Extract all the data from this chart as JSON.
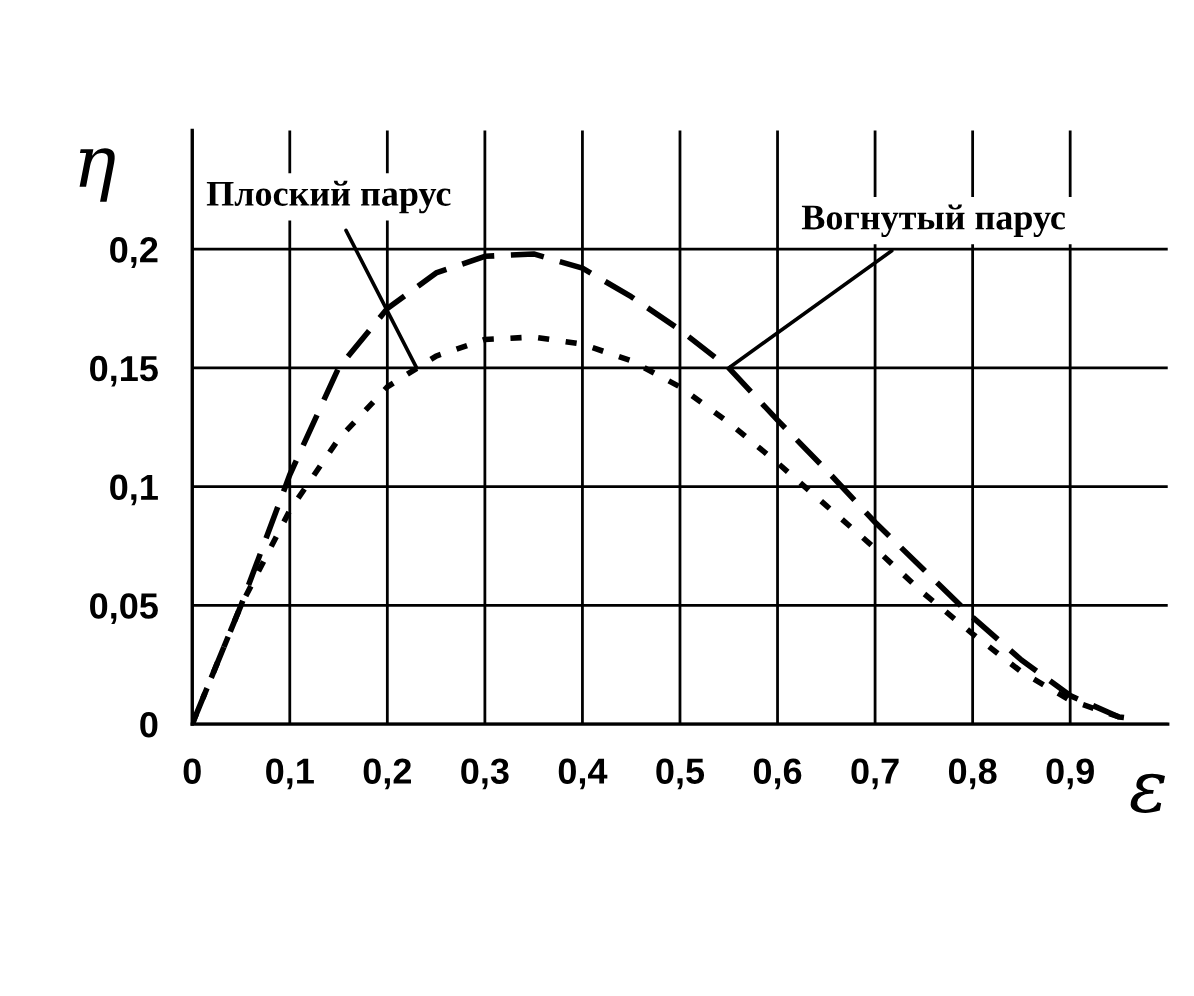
{
  "chart_data": {
    "type": "line",
    "xlabel": "ε",
    "ylabel": "η",
    "xlim": [
      0,
      1
    ],
    "ylim": [
      0,
      0.25
    ],
    "xticks": [
      0,
      {
        "value": 0.1,
        "label": "0,1"
      },
      {
        "value": 0.2,
        "label": "0,2"
      },
      {
        "value": 0.3,
        "label": "0,3"
      },
      {
        "value": 0.4,
        "label": "0,4"
      },
      {
        "value": 0.5,
        "label": "0,5"
      },
      {
        "value": 0.6,
        "label": "0,6"
      },
      {
        "value": 0.7,
        "label": "0,7"
      },
      {
        "value": 0.8,
        "label": "0,8"
      },
      {
        "value": 0.9,
        "label": "0,9"
      }
    ],
    "yticks": [
      0,
      {
        "value": 0.05,
        "label": "0,05"
      },
      {
        "value": 0.1,
        "label": "0,1"
      },
      {
        "value": 0.15,
        "label": "0,15"
      },
      {
        "value": 0.2,
        "label": "0,2"
      }
    ],
    "grid": true,
    "legend": false,
    "series": [
      {
        "color": "#000000",
        "line_style": "dashed",
        "x": [
          0,
          0.02,
          0.05,
          0.1,
          0.15,
          0.2,
          0.25,
          0.3,
          0.35,
          0.4,
          0.45,
          0.5,
          0.55,
          0.6,
          0.65,
          0.7,
          0.75,
          0.8,
          0.85,
          0.9,
          0.95,
          0.97
        ],
        "values": [
          0,
          0.02,
          0.05,
          0.105,
          0.15,
          0.175,
          0.19,
          0.197,
          0.198,
          0.192,
          0.18,
          0.166,
          0.15,
          0.128,
          0.107,
          0.085,
          0.065,
          0.045,
          0.027,
          0.012,
          0.003,
          0.002
        ]
      },
      {
        "color": "#000000",
        "line_style": "dotted",
        "x": [
          0,
          0.02,
          0.05,
          0.1,
          0.15,
          0.2,
          0.25,
          0.3,
          0.35,
          0.4,
          0.45,
          0.5,
          0.55,
          0.6,
          0.65,
          0.7,
          0.75,
          0.8,
          0.85,
          0.9,
          0.95
        ],
        "values": [
          0,
          0.02,
          0.05,
          0.09,
          0.12,
          0.142,
          0.155,
          0.162,
          0.163,
          0.16,
          0.153,
          0.142,
          0.127,
          0.11,
          0.092,
          0.074,
          0.055,
          0.038,
          0.022,
          0.01,
          0.003
        ]
      }
    ],
    "annotations": [
      {
        "text": "Вогнутый парус",
        "x": 0.55,
        "y": 0.15
      },
      {
        "text": "Плоский парус",
        "x": 0.23,
        "y": 0.15
      }
    ]
  }
}
